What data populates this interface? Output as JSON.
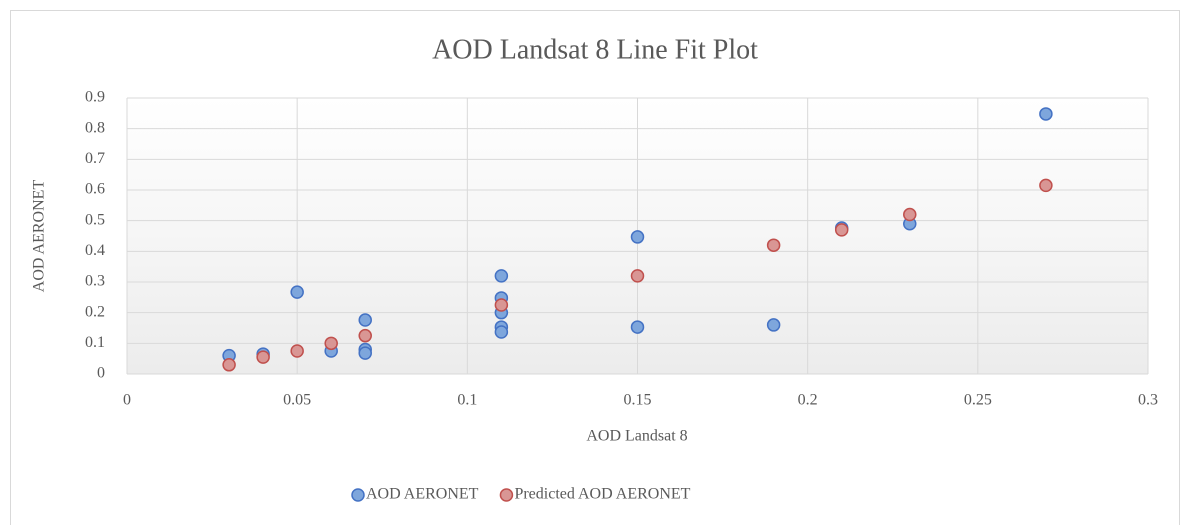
{
  "chart_data": {
    "type": "scatter",
    "title": "AOD Landsat 8 Line Fit  Plot",
    "x_label": "AOD Landsat 8",
    "y_label": "AOD AERONET",
    "xlim": [
      0,
      0.3
    ],
    "xticks": [
      0,
      0.05,
      0.1,
      0.15,
      0.2,
      0.25,
      0.3
    ],
    "ylim": [
      0,
      0.9
    ],
    "yticks": [
      0,
      0.1,
      0.2,
      0.3,
      0.4,
      0.5,
      0.6,
      0.7,
      0.8,
      0.9
    ],
    "grid": true,
    "legend": "bottom",
    "series": [
      {
        "name": "AOD AERONET",
        "color": "#7ea6dc",
        "edge_color": "#4472c4",
        "x": [
          0.03,
          0.04,
          0.05,
          0.06,
          0.07,
          0.07,
          0.07,
          0.11,
          0.11,
          0.11,
          0.11,
          0.11,
          0.15,
          0.15,
          0.19,
          0.21,
          0.23,
          0.27
        ],
        "values": [
          0.06,
          0.065,
          0.267,
          0.075,
          0.176,
          0.08,
          0.068,
          0.32,
          0.248,
          0.2,
          0.153,
          0.137,
          0.447,
          0.153,
          0.16,
          0.476,
          0.49,
          0.848
        ]
      },
      {
        "name": "Predicted AOD AERONET",
        "color": "#d99694",
        "edge_color": "#c0504d",
        "x": [
          0.03,
          0.04,
          0.05,
          0.06,
          0.07,
          0.11,
          0.15,
          0.19,
          0.21,
          0.23,
          0.27
        ],
        "values": [
          0.03,
          0.055,
          0.075,
          0.1,
          0.125,
          0.225,
          0.32,
          0.42,
          0.47,
          0.52,
          0.615
        ]
      }
    ]
  }
}
